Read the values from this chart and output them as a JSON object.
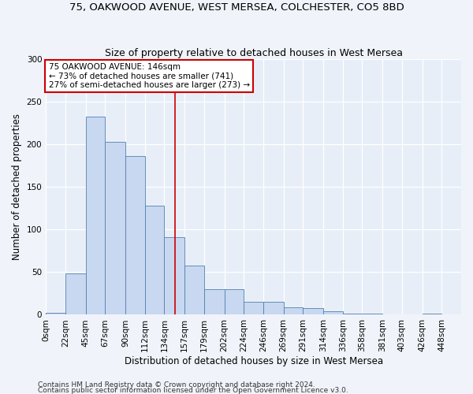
{
  "title1": "75, OAKWOOD AVENUE, WEST MERSEA, COLCHESTER, CO5 8BD",
  "title2": "Size of property relative to detached houses in West Mersea",
  "xlabel": "Distribution of detached houses by size in West Mersea",
  "ylabel": "Number of detached properties",
  "footnote1": "Contains HM Land Registry data © Crown copyright and database right 2024.",
  "footnote2": "Contains public sector information licensed under the Open Government Licence v3.0.",
  "annotation_line1": "75 OAKWOOD AVENUE: 146sqm",
  "annotation_line2": "← 73% of detached houses are smaller (741)",
  "annotation_line3": "27% of semi-detached houses are larger (273) →",
  "property_size": 146,
  "bar_categories": [
    "0sqm",
    "22sqm",
    "45sqm",
    "67sqm",
    "90sqm",
    "112sqm",
    "134sqm",
    "157sqm",
    "179sqm",
    "202sqm",
    "224sqm",
    "246sqm",
    "269sqm",
    "291sqm",
    "314sqm",
    "336sqm",
    "358sqm",
    "381sqm",
    "403sqm",
    "426sqm",
    "448sqm"
  ],
  "bar_values": [
    2,
    48,
    232,
    203,
    186,
    128,
    91,
    58,
    30,
    30,
    15,
    15,
    9,
    8,
    4,
    1,
    1,
    0,
    0,
    1,
    0
  ],
  "bar_color": "#c8d8f0",
  "bar_edge_color": "#5080b0",
  "red_line_x": 146,
  "ylim": [
    0,
    300
  ],
  "yticks": [
    0,
    50,
    100,
    150,
    200,
    250,
    300
  ],
  "bg_color": "#e8eef8",
  "grid_color": "#ffffff",
  "annotation_box_color": "#ffffff",
  "annotation_border_color": "#cc0000",
  "red_line_color": "#cc0000",
  "title1_fontsize": 9.5,
  "title2_fontsize": 9,
  "xlabel_fontsize": 8.5,
  "ylabel_fontsize": 8.5,
  "footnote_fontsize": 6.5,
  "tick_fontsize": 7.5,
  "annotation_fontsize": 7.5
}
